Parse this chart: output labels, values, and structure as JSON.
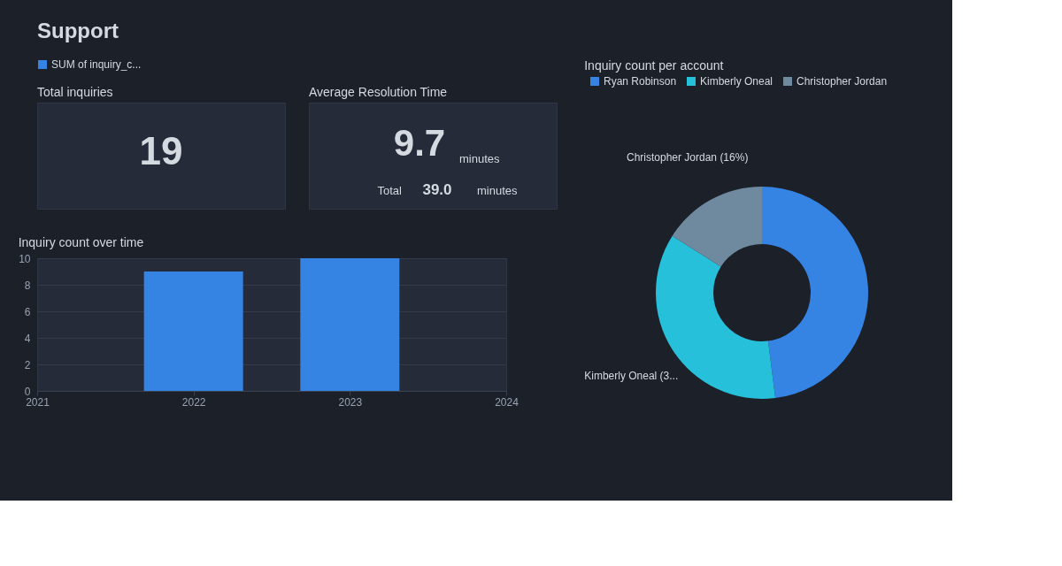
{
  "chart_data": [
    {
      "type": "other",
      "title": "Support"
    },
    {
      "type": "other",
      "title": "Total inquiries",
      "annotations": [
        "19"
      ]
    },
    {
      "type": "other",
      "title": "Average Resolution Time",
      "annotations": [
        "9.7",
        "minutes",
        "Total",
        "39.0",
        "minutes"
      ]
    },
    {
      "type": "bar",
      "title": "Inquiry count over time",
      "x": [
        2022,
        2023
      ],
      "series": [
        {
          "name": "SUM of inquiry_c...",
          "color": "#3584e4",
          "values": [
            9,
            10
          ]
        }
      ],
      "xlim": [
        2021,
        2024
      ],
      "xticks": [
        2021,
        2022,
        2023,
        2024
      ],
      "ylim": [
        0,
        10
      ],
      "yticks": [
        0,
        2,
        4,
        6,
        8,
        10
      ],
      "grid": "y",
      "legend": "top"
    },
    {
      "type": "donut",
      "title": "Inquiry count per account",
      "categories": [
        "Ryan Robinson",
        "Kimberly Oneal",
        "Christopher Jordan"
      ],
      "values": [
        48,
        36,
        16
      ],
      "colors": [
        "#3584e4",
        "#26c0db",
        "#6f8a9e"
      ],
      "value_labels": [
        null,
        "Kimberly Oneal (3...",
        "Christopher Jordan (16%)"
      ],
      "legend": "top"
    }
  ]
}
